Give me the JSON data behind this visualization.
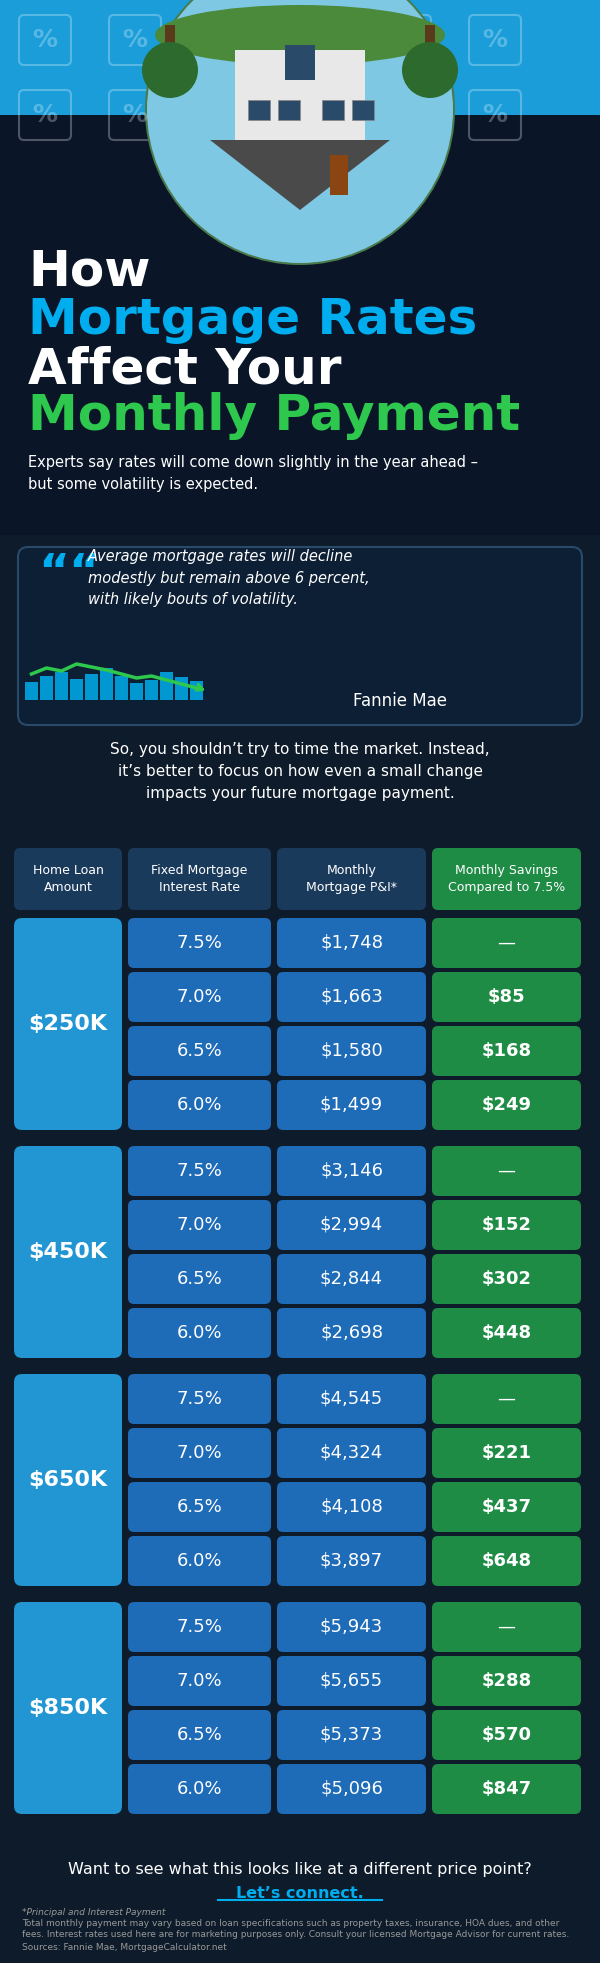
{
  "bg_color": "#0d1b2a",
  "blue_header": "#1a3a5c",
  "cell_blue": "#1e6bb8",
  "cell_green": "#1e8c45",
  "cell_light_blue": "#2196d3",
  "title_line1": "How",
  "title_line2": "Mortgage Rates",
  "title_line3": "Affect Your",
  "title_line4": "Monthly Payment",
  "subtitle": "Experts say rates will come down slightly in the year ahead –\nbut some volatility is expected.",
  "quote": "Average mortgage rates will decline\nmodestly but remain above 6 percent,\nwith likely bouts of volatility.",
  "quote_source": "Fannie Mae",
  "body_text": "So, you shouldn’t try to time the market. Instead,\nit’s better to focus on how even a small change\nimpacts your future mortgage payment.",
  "col_headers": [
    "Home Loan\nAmount",
    "Fixed Mortgage\nInterest Rate",
    "Monthly\nMortgage P&I*",
    "Monthly Savings\nCompared to 7.5%"
  ],
  "loans": [
    {
      "amount": "$250K",
      "rows": [
        {
          "rate": "7.5%",
          "payment": "$1,748",
          "savings": "—"
        },
        {
          "rate": "7.0%",
          "payment": "$1,663",
          "savings": "$85"
        },
        {
          "rate": "6.5%",
          "payment": "$1,580",
          "savings": "$168"
        },
        {
          "rate": "6.0%",
          "payment": "$1,499",
          "savings": "$249"
        }
      ]
    },
    {
      "amount": "$450K",
      "rows": [
        {
          "rate": "7.5%",
          "payment": "$3,146",
          "savings": "—"
        },
        {
          "rate": "7.0%",
          "payment": "$2,994",
          "savings": "$152"
        },
        {
          "rate": "6.5%",
          "payment": "$2,844",
          "savings": "$302"
        },
        {
          "rate": "6.0%",
          "payment": "$2,698",
          "savings": "$448"
        }
      ]
    },
    {
      "amount": "$650K",
      "rows": [
        {
          "rate": "7.5%",
          "payment": "$4,545",
          "savings": "—"
        },
        {
          "rate": "7.0%",
          "payment": "$4,324",
          "savings": "$221"
        },
        {
          "rate": "6.5%",
          "payment": "$4,108",
          "savings": "$437"
        },
        {
          "rate": "6.0%",
          "payment": "$3,897",
          "savings": "$648"
        }
      ]
    },
    {
      "amount": "$850K",
      "rows": [
        {
          "rate": "7.5%",
          "payment": "$5,943",
          "savings": "—"
        },
        {
          "rate": "7.0%",
          "payment": "$5,655",
          "savings": "$288"
        },
        {
          "rate": "6.5%",
          "payment": "$5,373",
          "savings": "$570"
        },
        {
          "rate": "6.0%",
          "payment": "$5,096",
          "savings": "$847"
        }
      ]
    }
  ],
  "footnote1": "*Principal and Interest Payment",
  "footnote2": "Total monthly payment may vary based on loan specifications such as property taxes, insurance, HOA dues, and other\nfees. Interest rates used here are for marketing purposes only. Consult your licensed Mortgage Advisor for current rates.",
  "footnote3": "Sources: Fannie Mae, MortgageCalculator.net",
  "cta_text": "Want to see what this looks like at a different price point?",
  "cta_link": "Let’s connect.",
  "white": "#ffffff",
  "cyan": "#00aeef",
  "green": "#2dc84d",
  "dark_navy": "#0a1628",
  "top_blue": "#1a9dd9",
  "quote_box_bg": "#0d1f35",
  "quote_box_border": "#2a4a6a"
}
